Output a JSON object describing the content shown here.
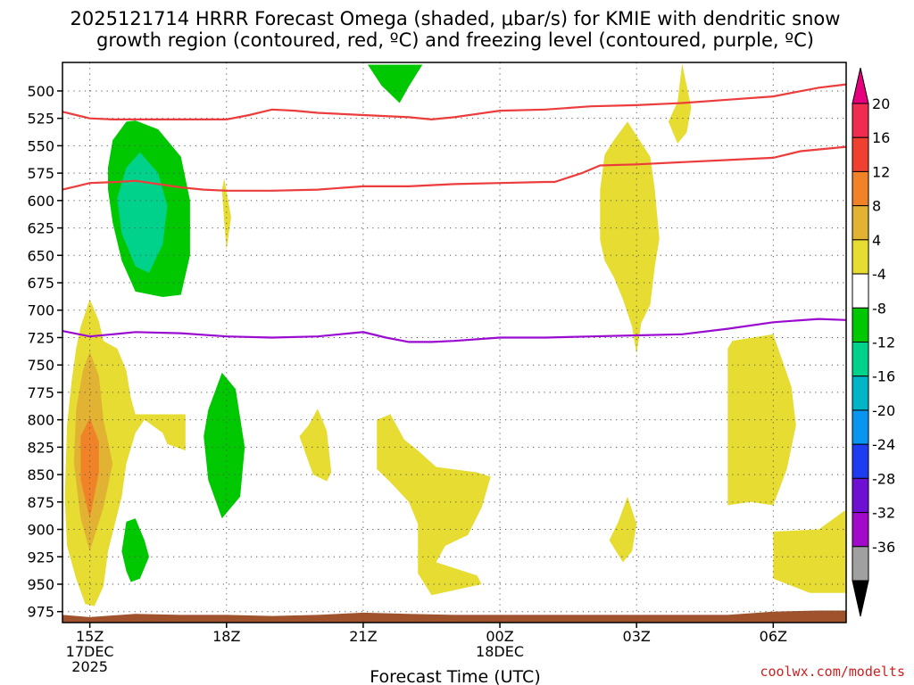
{
  "chart_data": {
    "type": "contour",
    "title_lines": [
      "2025121714 HRRR Forecast Omega (shaded, μbar/s) for KMIE with dendritic snow",
      "growth region (contoured, red, ºC) and freezing level (contoured, purple, ºC)"
    ],
    "xlabel": "Forecast Time (UTC)",
    "credit": "coolwx.com/modelts",
    "x_range_hours": [
      -0.6,
      16.6
    ],
    "y_range_mb": [
      474,
      985
    ],
    "y_ticks": [
      500,
      525,
      550,
      575,
      600,
      625,
      650,
      675,
      700,
      725,
      750,
      775,
      800,
      825,
      850,
      875,
      900,
      925,
      950,
      975
    ],
    "x_ticks": [
      {
        "hour": 0,
        "lines": [
          "15Z",
          "17DEC",
          "2025"
        ]
      },
      {
        "hour": 3,
        "lines": [
          "18Z"
        ]
      },
      {
        "hour": 6,
        "lines": [
          "21Z"
        ]
      },
      {
        "hour": 9,
        "lines": [
          "00Z",
          "18DEC"
        ]
      },
      {
        "hour": 12,
        "lines": [
          "03Z"
        ]
      },
      {
        "hour": 15,
        "lines": [
          "06Z"
        ]
      }
    ],
    "colorbar": {
      "labels": [
        "20",
        "16",
        "12",
        "8",
        "4",
        "-4",
        "-8",
        "-12",
        "-16",
        "-20",
        "-24",
        "-28",
        "-32",
        "-36"
      ],
      "colors": [
        "#f02c50",
        "#f04030",
        "#f08228",
        "#e2b232",
        "#e6dc32",
        "#ffffff",
        "#00c800",
        "#00d28c",
        "#00b4c8",
        "#0a96f0",
        "#1e3cf0",
        "#6e10d2",
        "#a00ac8",
        "#a0a0a0"
      ],
      "top_arrow_color": "#e6007e",
      "bottom_arrow_color": "#000000"
    },
    "colors": {
      "dgz": "#ec3c3c",
      "freezing": "#9a0ad0",
      "ground": "#a0522d"
    },
    "dgz_lower_line": [
      [
        -0.6,
        590
      ],
      [
        -0.3,
        587
      ],
      [
        0,
        584
      ],
      [
        0.6,
        583
      ],
      [
        1,
        582
      ],
      [
        1.5,
        585
      ],
      [
        2,
        588
      ],
      [
        2.5,
        590
      ],
      [
        3,
        591
      ],
      [
        4,
        591
      ],
      [
        5,
        590
      ],
      [
        6,
        587
      ],
      [
        7,
        587
      ],
      [
        8,
        585
      ],
      [
        9,
        584
      ],
      [
        10,
        583
      ],
      [
        10.2,
        583
      ],
      [
        10.8,
        575
      ],
      [
        11.2,
        568
      ],
      [
        12,
        567
      ],
      [
        13,
        565
      ],
      [
        14,
        563
      ],
      [
        15,
        561
      ],
      [
        15.6,
        555
      ],
      [
        16.6,
        551
      ]
    ],
    "dgz_upper_line": [
      [
        -0.6,
        519
      ],
      [
        -0.3,
        522
      ],
      [
        0,
        525
      ],
      [
        0.5,
        526
      ],
      [
        1,
        526
      ],
      [
        2,
        526
      ],
      [
        3,
        526
      ],
      [
        3.5,
        522
      ],
      [
        4,
        517
      ],
      [
        4.5,
        518
      ],
      [
        5,
        520
      ],
      [
        6,
        522
      ],
      [
        7,
        524
      ],
      [
        7.5,
        526
      ],
      [
        8,
        524
      ],
      [
        9,
        518
      ],
      [
        10,
        517
      ],
      [
        11,
        514
      ],
      [
        12,
        513
      ],
      [
        13,
        511
      ],
      [
        14,
        508
      ],
      [
        15,
        505
      ],
      [
        15.5,
        501
      ],
      [
        16,
        497
      ],
      [
        16.6,
        494
      ]
    ],
    "freezing_line": [
      [
        -0.6,
        719
      ],
      [
        0,
        724
      ],
      [
        0.5,
        722
      ],
      [
        1,
        720
      ],
      [
        2,
        721
      ],
      [
        3,
        724
      ],
      [
        4,
        725
      ],
      [
        5,
        724
      ],
      [
        6,
        720
      ],
      [
        6.5,
        725
      ],
      [
        7,
        729
      ],
      [
        7.5,
        729
      ],
      [
        8,
        728
      ],
      [
        9,
        725
      ],
      [
        10,
        725
      ],
      [
        11,
        724
      ],
      [
        12,
        723
      ],
      [
        13,
        722
      ],
      [
        14,
        717
      ],
      [
        15,
        711
      ],
      [
        16,
        708
      ],
      [
        16.6,
        709
      ]
    ],
    "ground_line": [
      [
        -0.6,
        978
      ],
      [
        0,
        980
      ],
      [
        1,
        977
      ],
      [
        2,
        978
      ],
      [
        3,
        978
      ],
      [
        4,
        979
      ],
      [
        5,
        978
      ],
      [
        6,
        976
      ],
      [
        7,
        977
      ],
      [
        8,
        978
      ],
      [
        9,
        978
      ],
      [
        10,
        978
      ],
      [
        11,
        978
      ],
      [
        12,
        978
      ],
      [
        13,
        978
      ],
      [
        14,
        978
      ],
      [
        15,
        975
      ],
      [
        16,
        974
      ],
      [
        16.6,
        974
      ]
    ],
    "omega_regions": [
      {
        "level": -8,
        "points": [
          [
            0.4,
            570
          ],
          [
            0.5,
            545
          ],
          [
            0.8,
            528
          ],
          [
            1.0,
            527
          ],
          [
            1.5,
            535
          ],
          [
            2.0,
            560
          ],
          [
            2.2,
            600
          ],
          [
            2.2,
            650
          ],
          [
            2.0,
            686
          ],
          [
            1.6,
            688
          ],
          [
            1.0,
            683
          ],
          [
            0.7,
            655
          ],
          [
            0.5,
            620
          ],
          [
            0.4,
            590
          ]
        ]
      },
      {
        "level": -12,
        "points": [
          [
            0.6,
            598
          ],
          [
            0.8,
            570
          ],
          [
            1.1,
            556
          ],
          [
            1.5,
            575
          ],
          [
            1.7,
            605
          ],
          [
            1.6,
            640
          ],
          [
            1.3,
            666
          ],
          [
            1.0,
            660
          ],
          [
            0.7,
            630
          ]
        ]
      },
      {
        "level": -8,
        "points": [
          [
            6.1,
            476
          ],
          [
            7.3,
            476
          ],
          [
            7.0,
            496
          ],
          [
            6.8,
            511
          ],
          [
            6.4,
            495
          ]
        ]
      },
      {
        "level": -8,
        "points": [
          [
            2.6,
            791
          ],
          [
            2.9,
            757
          ],
          [
            3.2,
            772
          ],
          [
            3.4,
            825
          ],
          [
            3.3,
            870
          ],
          [
            2.9,
            890
          ],
          [
            2.6,
            855
          ],
          [
            2.5,
            815
          ]
        ]
      },
      {
        "level": -8,
        "points": [
          [
            0.7,
            920
          ],
          [
            0.8,
            893
          ],
          [
            1.0,
            890
          ],
          [
            1.2,
            910
          ],
          [
            1.3,
            925
          ],
          [
            1.1,
            945
          ],
          [
            0.9,
            948
          ],
          [
            0.8,
            938
          ]
        ]
      },
      {
        "level": 4,
        "points": [
          [
            0.0,
            690
          ],
          [
            0.2,
            710
          ],
          [
            0.3,
            728
          ],
          [
            0.6,
            735
          ],
          [
            0.8,
            755
          ],
          [
            0.9,
            780
          ],
          [
            1.0,
            795
          ],
          [
            2.1,
            795
          ],
          [
            2.1,
            828
          ],
          [
            1.7,
            822
          ],
          [
            1.6,
            812
          ],
          [
            1.2,
            800
          ],
          [
            1.0,
            812
          ],
          [
            0.8,
            840
          ],
          [
            0.7,
            870
          ],
          [
            0.4,
            920
          ],
          [
            0.3,
            952
          ],
          [
            0.1,
            970
          ],
          [
            -0.1,
            968
          ],
          [
            -0.3,
            945
          ],
          [
            -0.5,
            915
          ],
          [
            -0.55,
            870
          ],
          [
            -0.5,
            805
          ],
          [
            -0.4,
            765
          ],
          [
            -0.3,
            735
          ],
          [
            -0.2,
            715
          ]
        ]
      },
      {
        "level": 8,
        "points": [
          [
            0.0,
            738
          ],
          [
            0.2,
            760
          ],
          [
            0.3,
            800
          ],
          [
            0.5,
            840
          ],
          [
            0.3,
            880
          ],
          [
            0.0,
            920
          ],
          [
            -0.2,
            890
          ],
          [
            -0.35,
            840
          ],
          [
            -0.3,
            790
          ],
          [
            -0.15,
            755
          ]
        ]
      },
      {
        "level": 12,
        "points": [
          [
            0.0,
            798
          ],
          [
            0.2,
            820
          ],
          [
            0.2,
            848
          ],
          [
            0.0,
            890
          ],
          [
            -0.2,
            855
          ],
          [
            -0.2,
            815
          ]
        ]
      },
      {
        "level": 4,
        "points": [
          [
            2.95,
            580
          ],
          [
            3.1,
            615
          ],
          [
            3.0,
            645
          ],
          [
            2.95,
            620
          ],
          [
            2.9,
            590
          ]
        ]
      },
      {
        "level": 4,
        "points": [
          [
            4.8,
            805
          ],
          [
            5.0,
            790
          ],
          [
            5.2,
            810
          ],
          [
            5.3,
            848
          ],
          [
            5.2,
            856
          ],
          [
            4.9,
            850
          ],
          [
            4.6,
            815
          ]
        ]
      },
      {
        "level": 4,
        "points": [
          [
            6.3,
            800
          ],
          [
            6.6,
            795
          ],
          [
            6.9,
            818
          ],
          [
            7.2,
            828
          ],
          [
            7.6,
            843
          ],
          [
            8.5,
            848
          ],
          [
            8.8,
            852
          ],
          [
            8.6,
            880
          ],
          [
            8.3,
            905
          ],
          [
            7.8,
            915
          ],
          [
            7.6,
            930
          ],
          [
            8.5,
            942
          ],
          [
            8.6,
            950
          ],
          [
            7.5,
            960
          ],
          [
            7.2,
            940
          ],
          [
            7.2,
            895
          ],
          [
            7.0,
            875
          ],
          [
            6.6,
            857
          ],
          [
            6.3,
            845
          ]
        ]
      },
      {
        "level": 4,
        "points": [
          [
            11.8,
            528
          ],
          [
            12.3,
            560
          ],
          [
            12.4,
            590
          ],
          [
            12.5,
            635
          ],
          [
            12.4,
            660
          ],
          [
            12.3,
            695
          ],
          [
            12.1,
            712
          ],
          [
            12.0,
            740
          ],
          [
            11.9,
            715
          ],
          [
            11.7,
            690
          ],
          [
            11.5,
            670
          ],
          [
            11.3,
            655
          ],
          [
            11.2,
            636
          ],
          [
            11.2,
            590
          ],
          [
            11.3,
            558
          ],
          [
            11.5,
            545
          ]
        ]
      },
      {
        "level": 4,
        "points": [
          [
            13.0,
            475
          ],
          [
            13.2,
            515
          ],
          [
            13.1,
            538
          ],
          [
            12.9,
            548
          ],
          [
            12.7,
            528
          ],
          [
            12.9,
            510
          ]
        ]
      },
      {
        "level": 4,
        "points": [
          [
            11.6,
            893
          ],
          [
            11.8,
            870
          ],
          [
            12.0,
            895
          ],
          [
            11.9,
            920
          ],
          [
            11.7,
            930
          ],
          [
            11.4,
            910
          ]
        ]
      },
      {
        "level": 4,
        "points": [
          [
            14.1,
            728
          ],
          [
            15.0,
            722
          ],
          [
            15.4,
            770
          ],
          [
            15.5,
            805
          ],
          [
            15.3,
            845
          ],
          [
            15.0,
            878
          ],
          [
            14.5,
            875
          ],
          [
            14.0,
            878
          ],
          [
            14.0,
            735
          ]
        ]
      },
      {
        "level": 4,
        "points": [
          [
            15.0,
            902
          ],
          [
            16.0,
            900
          ],
          [
            16.6,
            882
          ],
          [
            16.6,
            958
          ],
          [
            15.8,
            958
          ],
          [
            15.0,
            945
          ]
        ]
      }
    ]
  }
}
